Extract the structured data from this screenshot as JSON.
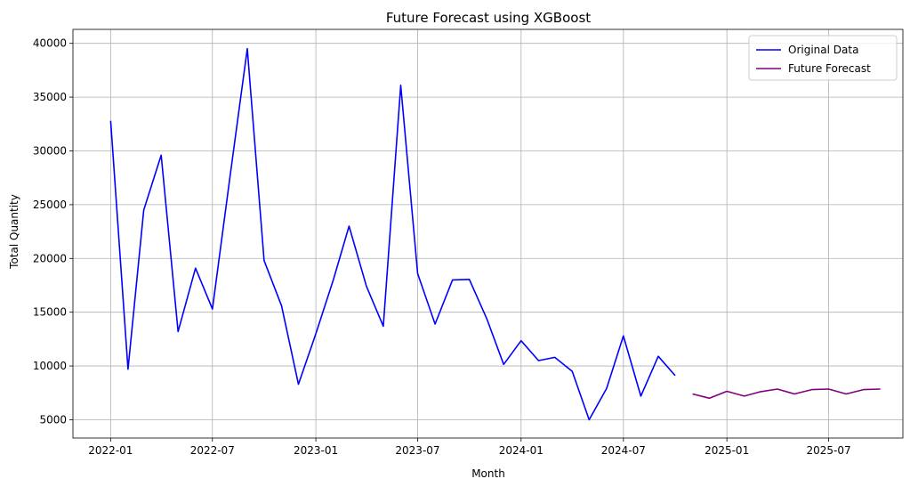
{
  "chart_data": {
    "type": "line",
    "title": "Future Forecast using XGBoost",
    "xlabel": "Month",
    "ylabel": "Total Quantity",
    "xlim": [
      "2021-10-26",
      "2025-11-10"
    ],
    "ylim": [
      3300,
      41300
    ],
    "grid": true,
    "legend_position": "top-right",
    "x_ticks": [
      "2022-01",
      "2022-07",
      "2023-01",
      "2023-07",
      "2024-01",
      "2024-07",
      "2025-01",
      "2025-07"
    ],
    "y_ticks": [
      5000,
      10000,
      15000,
      20000,
      25000,
      30000,
      35000,
      40000
    ],
    "series": [
      {
        "name": "Original Data",
        "color": "#0000ff",
        "x": [
          "2022-01-01",
          "2022-02-01",
          "2022-03-01",
          "2022-04-01",
          "2022-05-01",
          "2022-06-01",
          "2022-07-01",
          "2022-08-01",
          "2022-09-01",
          "2022-10-01",
          "2022-11-01",
          "2022-12-01",
          "2023-01-01",
          "2023-02-01",
          "2023-03-01",
          "2023-04-01",
          "2023-05-01",
          "2023-06-01",
          "2023-07-01",
          "2023-08-01",
          "2023-09-01",
          "2023-10-01",
          "2023-11-01",
          "2023-12-01",
          "2024-01-01",
          "2024-02-01",
          "2024-03-01",
          "2024-04-01",
          "2024-05-01",
          "2024-06-01",
          "2024-07-01",
          "2024-08-01",
          "2024-09-01",
          "2024-10-01"
        ],
        "values": [
          32800,
          9700,
          24500,
          29600,
          13200,
          19100,
          15300,
          27500,
          39500,
          19800,
          15600,
          8300,
          13000,
          18000,
          23000,
          17400,
          13700,
          36100,
          18600,
          13900,
          18000,
          18050,
          14400,
          10150,
          12350,
          10500,
          10800,
          9500,
          5000,
          7900,
          12800,
          7200,
          10900,
          9100
        ]
      },
      {
        "name": "Future Forecast",
        "color": "#800080",
        "x": [
          "2024-11-01",
          "2024-12-01",
          "2025-01-01",
          "2025-02-01",
          "2025-03-01",
          "2025-04-01",
          "2025-05-01",
          "2025-06-01",
          "2025-07-01",
          "2025-08-01",
          "2025-09-01",
          "2025-10-01"
        ],
        "values": [
          7400,
          7000,
          7650,
          7200,
          7600,
          7850,
          7400,
          7800,
          7850,
          7400,
          7800,
          7850
        ]
      }
    ]
  }
}
